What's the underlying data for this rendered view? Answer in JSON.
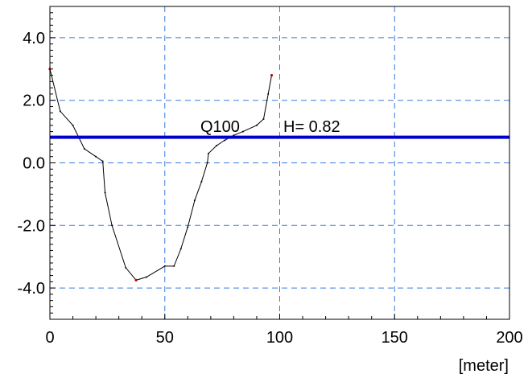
{
  "chart_data": {
    "type": "line",
    "title": "",
    "xlabel": "[meter]",
    "ylabel": "",
    "xlim": [
      0,
      200
    ],
    "ylim": [
      -5,
      5
    ],
    "x_ticks": [
      0,
      50,
      100,
      150,
      200
    ],
    "x_tick_labels": [
      "0",
      "50",
      "100",
      "150",
      "200"
    ],
    "y_ticks": [
      4,
      2,
      0,
      -2,
      -4
    ],
    "y_tick_labels": [
      "4.0",
      "2.0",
      "0.0",
      "-2.0",
      "-4.0"
    ],
    "grid": true,
    "series": [
      {
        "values": [
          [
            0,
            3.0
          ],
          [
            4.5,
            1.65
          ],
          [
            10,
            1.2
          ],
          [
            15,
            0.45
          ],
          [
            20,
            0.2
          ],
          [
            23,
            0.05
          ],
          [
            24,
            -0.95
          ],
          [
            27,
            -2.0
          ],
          [
            33,
            -3.35
          ],
          [
            37.5,
            -3.75
          ],
          [
            42,
            -3.65
          ],
          [
            50,
            -3.3
          ],
          [
            54,
            -3.3
          ],
          [
            57,
            -2.75
          ],
          [
            60,
            -2.05
          ],
          [
            63,
            -1.2
          ],
          [
            66,
            -0.6
          ],
          [
            68.5,
            0.0
          ],
          [
            69,
            0.3
          ],
          [
            72.5,
            0.55
          ],
          [
            76,
            0.72
          ],
          [
            80,
            0.88
          ],
          [
            84,
            1.0
          ],
          [
            90,
            1.2
          ],
          [
            93,
            1.4
          ],
          [
            95,
            2.2
          ],
          [
            96.5,
            2.8
          ]
        ],
        "color": "#000000"
      }
    ],
    "water_level": {
      "y": 0.82,
      "color": "#0000cc"
    },
    "annotations": {
      "profile_label": "Q100",
      "level_label": "H=  0.82"
    },
    "colors": {
      "grid": "#3a7be0",
      "endpoint": "#cc0000"
    }
  }
}
